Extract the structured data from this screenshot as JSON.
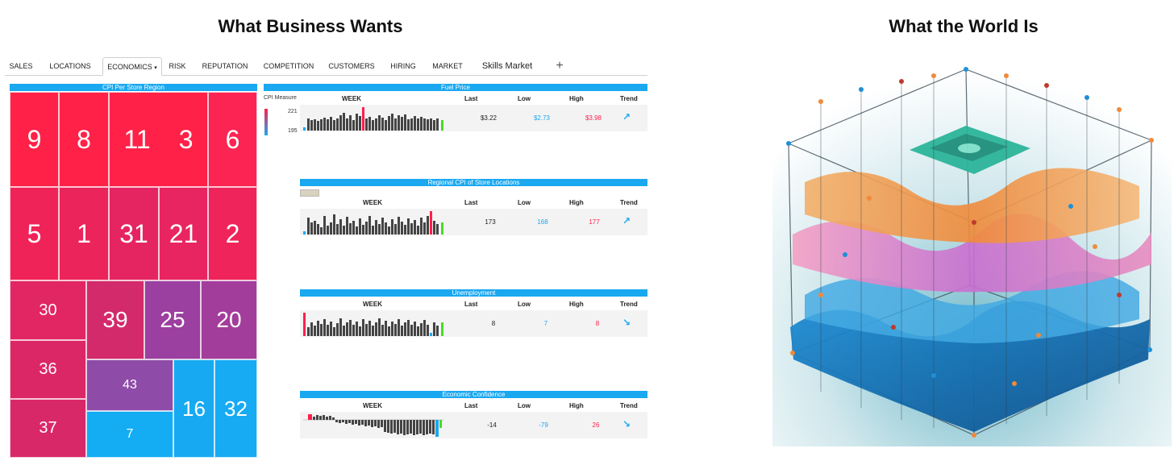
{
  "left_title": "What Business Wants",
  "right_title": "What the World Is",
  "tabs": [
    "SALES",
    "LOCATIONS",
    "ECONOMICS",
    "RISK",
    "REPUTATION",
    "COMPETITION",
    "CUSTOMERS",
    "HIRING",
    "MARKET",
    "Skills Market",
    "+"
  ],
  "active_tab": "ECONOMICS",
  "treemap": {
    "title": "CPI Per Store Region",
    "cells": [
      "9",
      "8",
      "11",
      "3",
      "6",
      "5",
      "1",
      "31",
      "21",
      "2",
      "30",
      "39",
      "25",
      "20",
      "36",
      "43",
      "16",
      "32",
      "37",
      "7"
    ]
  },
  "legend": {
    "title": "CPI Measure",
    "max": "221",
    "min": "195"
  },
  "columns": {
    "week": "WEEK",
    "last": "Last",
    "low": "Low",
    "high": "High",
    "trend": "Trend"
  },
  "panels": [
    {
      "title": "Fuel Price",
      "last": "$3.22",
      "low": "$2.73",
      "high": "$3.98",
      "trend": "up",
      "trend_glyph": "↗"
    },
    {
      "title": "Regional CPI of Store Locations",
      "last": "173",
      "low": "168",
      "high": "177",
      "trend": "up",
      "trend_glyph": "↗"
    },
    {
      "title": "Unemployment",
      "last": "8",
      "low": "7",
      "high": "8",
      "trend": "down",
      "trend_glyph": "↘"
    },
    {
      "title": "Economic Confidence",
      "last": "-14",
      "low": "-79",
      "high": "26",
      "trend": "down",
      "trend_glyph": "↘"
    }
  ],
  "colors": {
    "accent_blue": "#1aa8f0",
    "red": "#ff1f4b",
    "pink": "#e52563",
    "purple": "#9b3fa0",
    "violet": "#8e4ba8"
  },
  "image": {
    "subject": "abstract 3D complex network cube",
    "icon": "network-cube-art"
  }
}
